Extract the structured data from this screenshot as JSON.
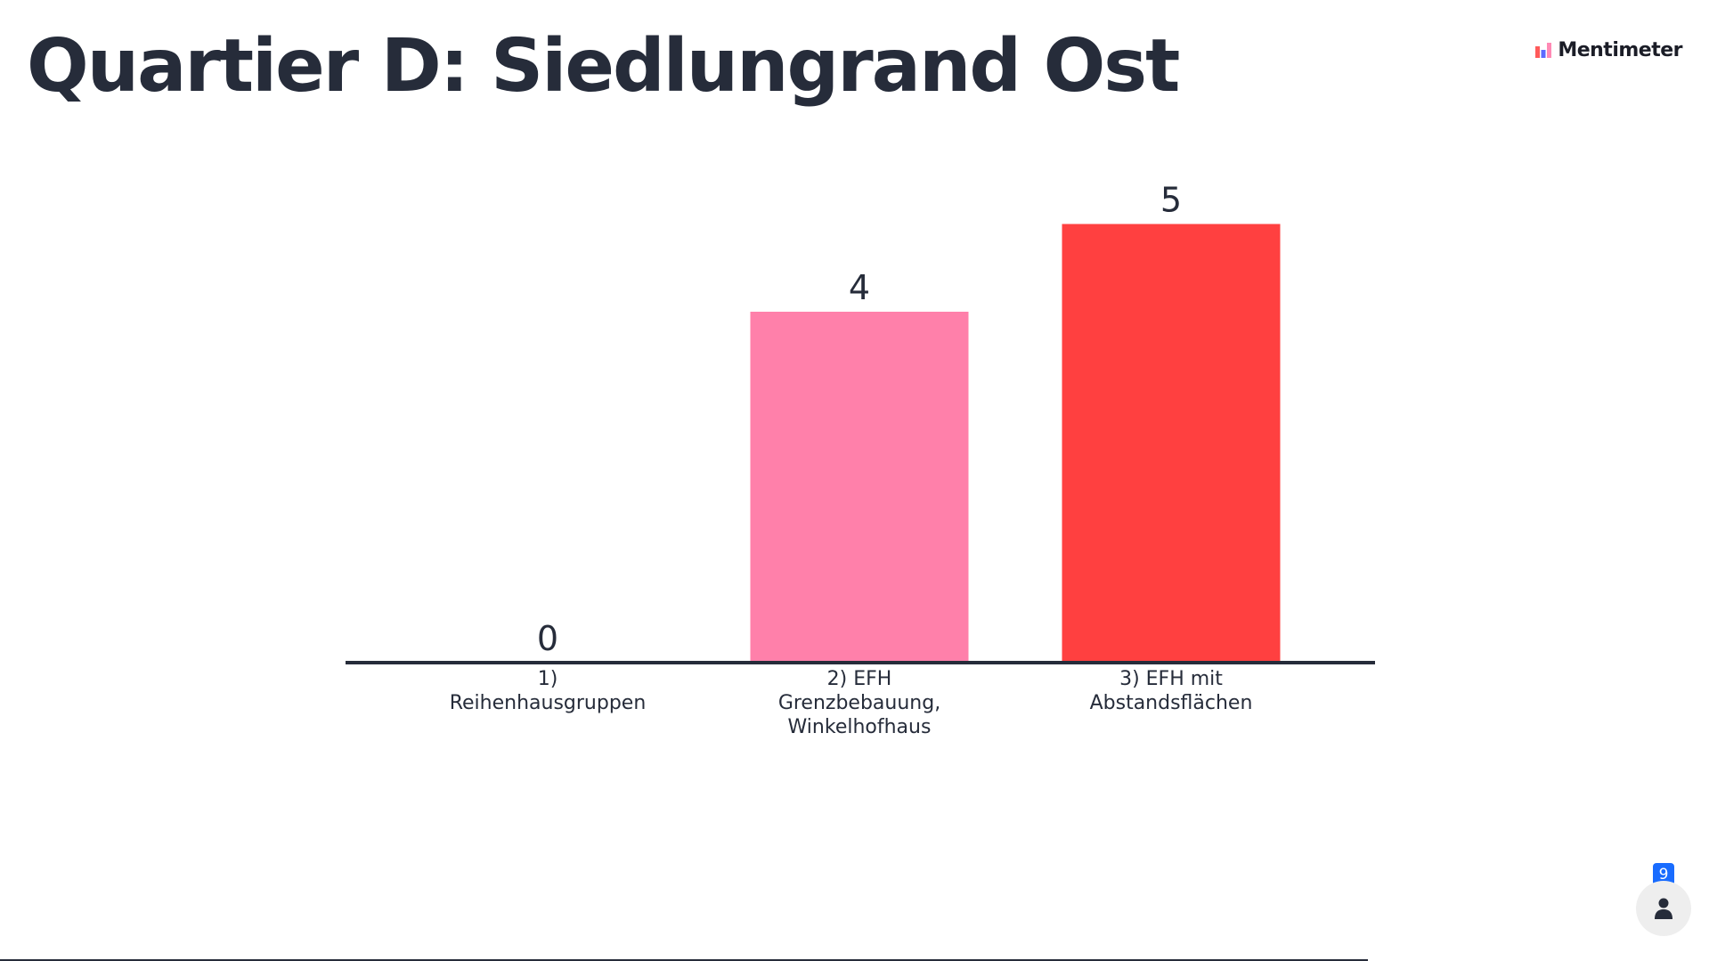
{
  "slide": {
    "title": "Quartier D: Siedlungrand Ost"
  },
  "brand": {
    "logo_text": "Mentimeter",
    "logo_icon": "mentimeter-logo-icon",
    "logo_colors": [
      "#ff5a5a",
      "#5b6bff",
      "#ff8ab5"
    ]
  },
  "participants": {
    "count": "9",
    "icon": "person-icon",
    "badge_color": "#196cff"
  },
  "chart_data": {
    "type": "bar",
    "title": "Quartier D: Siedlungrand Ost",
    "categories": [
      "1) Reihenhausgruppen",
      "2) EFH Grenzbebauung, Winkelhofhaus",
      "3) EFH mit Abstandsflächen"
    ],
    "category_lines": [
      [
        "1)",
        "Reihenhausgruppen"
      ],
      [
        "2) EFH",
        "Grenzbebauung,",
        "Winkelhofhaus"
      ],
      [
        "3) EFH mit",
        "Abstandsflächen"
      ]
    ],
    "values": [
      0,
      4,
      5
    ],
    "value_labels": [
      "0",
      "4",
      "5"
    ],
    "colors": [
      "#6b8cff",
      "#ff80aa",
      "#ff4040"
    ],
    "ylim": [
      0,
      5
    ],
    "grid": false,
    "legend": "none",
    "xlabel": "",
    "ylabel": ""
  }
}
